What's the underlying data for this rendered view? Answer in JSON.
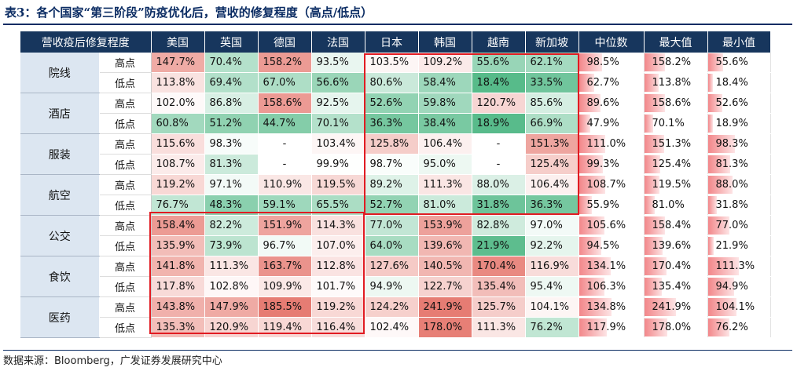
{
  "title": "表3：各个国家“第三阶段”防疫优化后，营收的修复程度（高点/低点）",
  "header": [
    "营收疫后修复程度",
    "美国",
    "英国",
    "德国",
    "法国",
    "日本",
    "韩国",
    "越南",
    "新加坡",
    "中位数",
    "最大值",
    "最小值"
  ],
  "rows": [
    {
      "cat": "院线",
      "sub": "高点",
      "values": [
        "147.7%",
        "70.4%",
        "158.2%",
        "93.5%",
        "103.5%",
        "109.2%",
        "55.6%",
        "62.1%"
      ],
      "stats": [
        "98.5%",
        "158.2%",
        "55.6%"
      ]
    },
    {
      "cat": "",
      "sub": "低点",
      "values": [
        "113.8%",
        "69.4%",
        "67.0%",
        "56.6%",
        "80.6%",
        "58.4%",
        "18.4%",
        "33.5%"
      ],
      "stats": [
        "62.7%",
        "113.8%",
        "18.4%"
      ]
    },
    {
      "cat": "酒店",
      "sub": "高点",
      "values": [
        "102.0%",
        "86.8%",
        "158.6%",
        "92.5%",
        "52.6%",
        "59.8%",
        "120.7%",
        "85.6%"
      ],
      "stats": [
        "89.6%",
        "158.6%",
        "52.6%"
      ]
    },
    {
      "cat": "",
      "sub": "低点",
      "values": [
        "60.8%",
        "51.2%",
        "44.7%",
        "70.1%",
        "36.3%",
        "38.4%",
        "18.9%",
        "66.9%"
      ],
      "stats": [
        "47.9%",
        "70.1%",
        "18.9%"
      ]
    },
    {
      "cat": "服装",
      "sub": "高点",
      "values": [
        "115.6%",
        "98.3%",
        "-",
        "103.4%",
        "125.8%",
        "106.4%",
        "-",
        "151.3%"
      ],
      "stats": [
        "111.0%",
        "151.3%",
        "98.3%"
      ]
    },
    {
      "cat": "",
      "sub": "低点",
      "values": [
        "108.7%",
        "81.3%",
        "-",
        "99.9%",
        "98.7%",
        "95.0%",
        "-",
        "125.4%"
      ],
      "stats": [
        "99.3%",
        "125.4%",
        "81.3%"
      ]
    },
    {
      "cat": "航空",
      "sub": "高点",
      "values": [
        "119.2%",
        "97.1%",
        "110.9%",
        "119.5%",
        "89.2%",
        "111.3%",
        "88.0%",
        "106.4%"
      ],
      "stats": [
        "108.7%",
        "119.5%",
        "88.0%"
      ]
    },
    {
      "cat": "",
      "sub": "低点",
      "values": [
        "76.7%",
        "48.3%",
        "59.1%",
        "65.5%",
        "52.7%",
        "81.0%",
        "31.8%",
        "36.3%"
      ],
      "stats": [
        "55.9%",
        "81.0%",
        "31.8%"
      ]
    },
    {
      "cat": "公交",
      "sub": "高点",
      "values": [
        "158.4%",
        "82.2%",
        "151.9%",
        "114.3%",
        "77.0%",
        "153.9%",
        "82.8%",
        "97.0%"
      ],
      "stats": [
        "105.6%",
        "158.4%",
        "77.0%"
      ]
    },
    {
      "cat": "",
      "sub": "低点",
      "values": [
        "135.9%",
        "73.9%",
        "96.7%",
        "107.0%",
        "64.0%",
        "139.6%",
        "21.9%",
        "92.2%"
      ],
      "stats": [
        "94.5%",
        "139.6%",
        "21.9%"
      ]
    },
    {
      "cat": "食饮",
      "sub": "高点",
      "values": [
        "141.8%",
        "111.3%",
        "163.7%",
        "112.8%",
        "127.6%",
        "140.5%",
        "170.4%",
        "116.9%"
      ],
      "stats": [
        "134.1%",
        "170.4%",
        "111.3%"
      ]
    },
    {
      "cat": "",
      "sub": "低点",
      "values": [
        "117.8%",
        "102.8%",
        "109.9%",
        "101.7%",
        "94.9%",
        "122.7%",
        "135.4%",
        "95.4%"
      ],
      "stats": [
        "106.3%",
        "135.4%",
        "94.9%"
      ]
    },
    {
      "cat": "医药",
      "sub": "高点",
      "values": [
        "143.8%",
        "147.9%",
        "185.5%",
        "119.2%",
        "124.2%",
        "241.9%",
        "125.7%",
        "104.1%"
      ],
      "stats": [
        "134.8%",
        "241.9%",
        "104.1%"
      ]
    },
    {
      "cat": "",
      "sub": "低点",
      "values": [
        "135.3%",
        "120.9%",
        "119.4%",
        "116.4%",
        "102.4%",
        "178.0%",
        "111.3%",
        "76.2%"
      ],
      "stats": [
        "117.9%",
        "178.0%",
        "76.2%"
      ]
    }
  ],
  "source": "数据来源：Bloomberg，广发证券发展研究中心",
  "colors": {
    "header_bg": "#17365d",
    "category_bg": "#dce6f1",
    "highlight_border": "#e11b22",
    "bar": "#f2878a",
    "low": "#57bb8a",
    "high": "#e67c73"
  }
}
